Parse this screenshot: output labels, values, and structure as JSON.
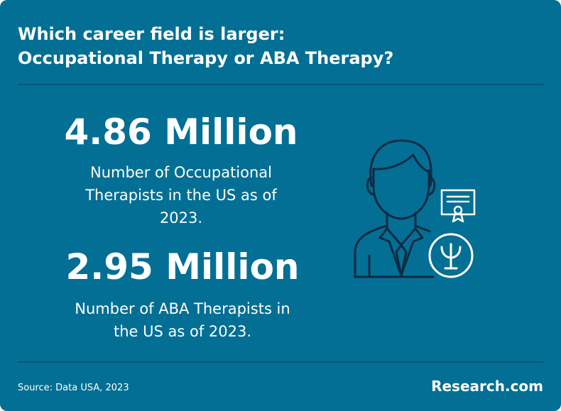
{
  "header": {
    "title_lines": [
      "Which career field is larger:",
      "Occupational Therapy or ABA Therapy?"
    ]
  },
  "stats": [
    {
      "value": "4.86 Million",
      "description_lines": [
        "Number of Occupational",
        "Therapists in the US as of",
        "2023."
      ]
    },
    {
      "value": "2.95 Million",
      "description_lines": [
        "Number of ABA Therapists in",
        "the US as of 2023."
      ]
    }
  ],
  "footer": {
    "source": "Source: Data USA, 2023",
    "brand": "Research.com"
  }
}
